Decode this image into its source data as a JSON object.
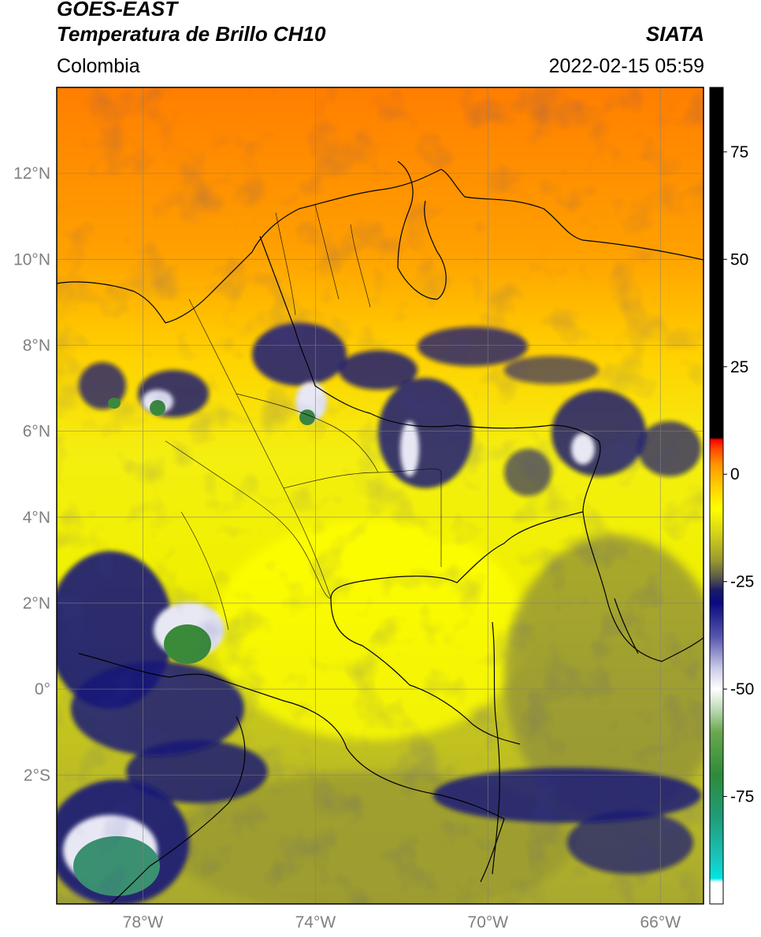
{
  "title": {
    "line1": "GOES-EAST",
    "line2": "Temperatura de Brillo CH10",
    "region": "Colombia",
    "source": "SIATA",
    "datetime": "2022-02-15 05:59"
  },
  "map": {
    "lon_range": [
      -80,
      -65
    ],
    "lat_range": [
      -5,
      14
    ],
    "lat_ticks": [
      {
        "value": 12,
        "label": "12°N"
      },
      {
        "value": 10,
        "label": "10°N"
      },
      {
        "value": 8,
        "label": "8°N"
      },
      {
        "value": 6,
        "label": "6°N"
      },
      {
        "value": 4,
        "label": "4°N"
      },
      {
        "value": 2,
        "label": "2°N"
      },
      {
        "value": 0,
        "label": "0°"
      },
      {
        "value": -2,
        "label": "2°S"
      }
    ],
    "lon_ticks": [
      {
        "value": -78,
        "label": "78°W"
      },
      {
        "value": -74,
        "label": "74°W"
      },
      {
        "value": -70,
        "label": "70°W"
      },
      {
        "value": -66,
        "label": "66°W"
      }
    ],
    "grid": true
  },
  "colorbar": {
    "range": [
      -100,
      90
    ],
    "ticks": [
      {
        "value": 75,
        "label": "75"
      },
      {
        "value": 50,
        "label": "50"
      },
      {
        "value": 25,
        "label": "25"
      },
      {
        "value": 0,
        "label": "0"
      },
      {
        "value": -25,
        "label": "-25"
      },
      {
        "value": -50,
        "label": "-50"
      },
      {
        "value": -75,
        "label": "-75"
      }
    ],
    "stops": [
      {
        "v": -100,
        "color": "#ffffff"
      },
      {
        "v": -95,
        "color": "#ffffff"
      },
      {
        "v": -94,
        "color": "#00e5e5"
      },
      {
        "v": -90,
        "color": "#18c8c0"
      },
      {
        "v": -80,
        "color": "#1f9d7a"
      },
      {
        "v": -70,
        "color": "#2e8b3a"
      },
      {
        "v": -60,
        "color": "#6aa84f"
      },
      {
        "v": -55,
        "color": "#b8d8b0"
      },
      {
        "v": -50,
        "color": "#ffffff"
      },
      {
        "v": -45,
        "color": "#c8c8e8"
      },
      {
        "v": -38,
        "color": "#5858b0"
      },
      {
        "v": -30,
        "color": "#0a0a80"
      },
      {
        "v": -27,
        "color": "#1a1a6a"
      },
      {
        "v": -24,
        "color": "#5a5a4a"
      },
      {
        "v": -20,
        "color": "#9a9a30"
      },
      {
        "v": -14,
        "color": "#d2d21a"
      },
      {
        "v": -8,
        "color": "#ffff00"
      },
      {
        "v": -3,
        "color": "#ffd000"
      },
      {
        "v": 2,
        "color": "#ff9900"
      },
      {
        "v": 6,
        "color": "#ff4400"
      },
      {
        "v": 8,
        "color": "#ff0000"
      },
      {
        "v": 8.5,
        "color": "#000000"
      },
      {
        "v": 90,
        "color": "#000000"
      }
    ]
  }
}
